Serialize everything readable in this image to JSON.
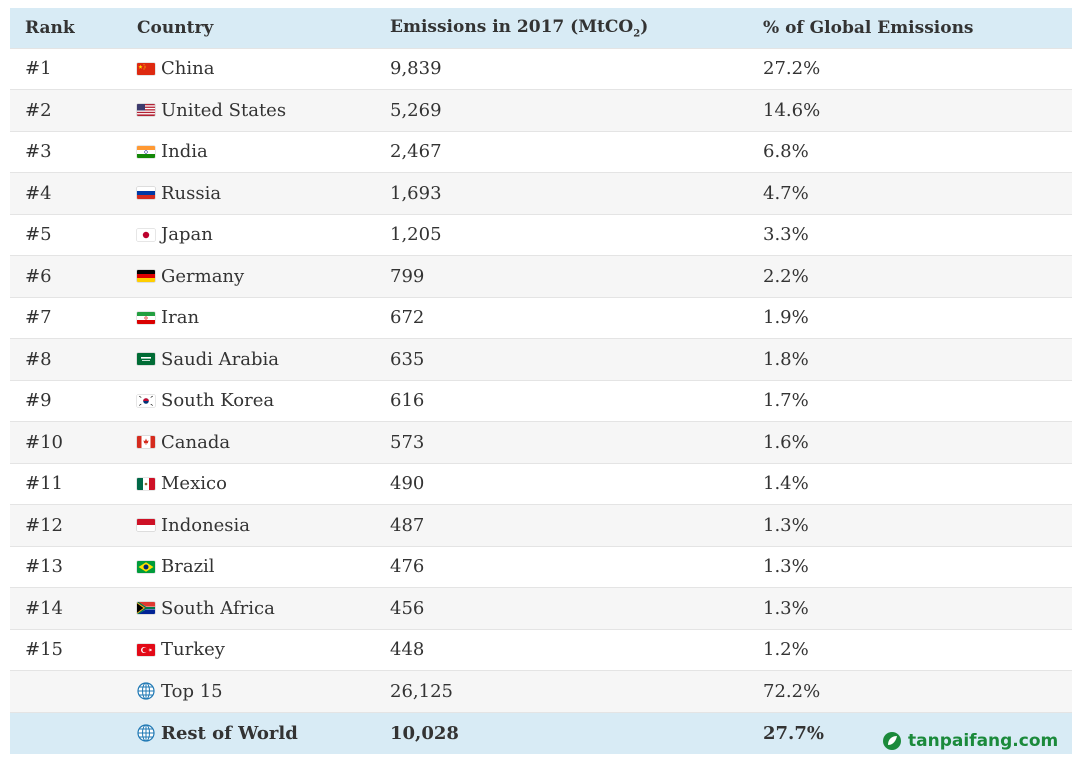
{
  "header": {
    "rank": "Rank",
    "country": "Country",
    "emissions_main": "Emissions in 2017 (MtCO",
    "emissions_sub": "2",
    "emissions_close": ")",
    "pct": "% of Global Emissions"
  },
  "chart_data": {
    "type": "table",
    "columns": [
      "Rank",
      "Country",
      "Emissions in 2017 (MtCO2)",
      "% of Global Emissions"
    ],
    "rows": [
      {
        "rank": "#1",
        "country": "China",
        "flag": "china-flag-icon",
        "emissions": "9,839",
        "pct": "27.2%"
      },
      {
        "rank": "#2",
        "country": "United States",
        "flag": "usa-flag-icon",
        "emissions": "5,269",
        "pct": "14.6%"
      },
      {
        "rank": "#3",
        "country": "India",
        "flag": "india-flag-icon",
        "emissions": "2,467",
        "pct": "6.8%"
      },
      {
        "rank": "#4",
        "country": "Russia",
        "flag": "russia-flag-icon",
        "emissions": "1,693",
        "pct": "4.7%"
      },
      {
        "rank": "#5",
        "country": "Japan",
        "flag": "japan-flag-icon",
        "emissions": "1,205",
        "pct": "3.3%"
      },
      {
        "rank": "#6",
        "country": "Germany",
        "flag": "germany-flag-icon",
        "emissions": "799",
        "pct": "2.2%"
      },
      {
        "rank": "#7",
        "country": "Iran",
        "flag": "iran-flag-icon",
        "emissions": "672",
        "pct": "1.9%"
      },
      {
        "rank": "#8",
        "country": "Saudi Arabia",
        "flag": "saudi-arabia-flag-icon",
        "emissions": "635",
        "pct": "1.8%"
      },
      {
        "rank": "#9",
        "country": "South Korea",
        "flag": "south-korea-flag-icon",
        "emissions": "616",
        "pct": "1.7%"
      },
      {
        "rank": "#10",
        "country": "Canada",
        "flag": "canada-flag-icon",
        "emissions": "573",
        "pct": "1.6%"
      },
      {
        "rank": "#11",
        "country": "Mexico",
        "flag": "mexico-flag-icon",
        "emissions": "490",
        "pct": "1.4%"
      },
      {
        "rank": "#12",
        "country": "Indonesia",
        "flag": "indonesia-flag-icon",
        "emissions": "487",
        "pct": "1.3%"
      },
      {
        "rank": "#13",
        "country": "Brazil",
        "flag": "brazil-flag-icon",
        "emissions": "476",
        "pct": "1.3%"
      },
      {
        "rank": "#14",
        "country": "South Africa",
        "flag": "south-africa-flag-icon",
        "emissions": "456",
        "pct": "1.3%"
      },
      {
        "rank": "#15",
        "country": "Turkey",
        "flag": "turkey-flag-icon",
        "emissions": "448",
        "pct": "1.2%"
      }
    ],
    "totals": [
      {
        "rank": "",
        "country": "Top 15",
        "flag": "globe-icon",
        "emissions": "26,125",
        "pct": "72.2%"
      },
      {
        "rank": "",
        "country": "Rest of World",
        "flag": "globe-icon",
        "emissions": "10,028",
        "pct": "27.7%"
      }
    ]
  },
  "watermark": {
    "text": "tanpaifang.com"
  },
  "colors": {
    "header_bg": "#d8ebf5",
    "alt_row_bg": "#f6f6f6",
    "logo_green": "#1b8a3b"
  }
}
